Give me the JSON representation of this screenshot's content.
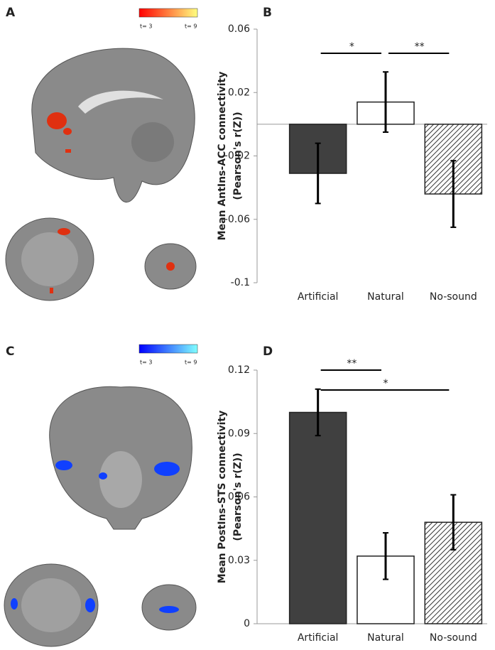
{
  "panel_labels": [
    "A",
    "B",
    "C",
    "D"
  ],
  "colorbars": [
    {
      "min_label": "t= 3",
      "max_label": "t= 9",
      "colors": [
        "#ff0000",
        "#ffff80"
      ]
    },
    {
      "min_label": "t= 3",
      "max_label": "t= 9",
      "colors": [
        "#0000ff",
        "#80ffff"
      ]
    }
  ],
  "chart_data": [
    {
      "type": "bar",
      "ylabel": [
        "Mean AntIns-ACC connectivity",
        "(Pearson's r(Z))"
      ],
      "categories": [
        "Artificial",
        "Natural",
        "No-sound"
      ],
      "values": [
        -0.031,
        0.014,
        -0.044
      ],
      "errors": [
        0.019,
        0.019,
        0.021
      ],
      "colors": [
        "#404040",
        "#ffffff",
        "#ffffff"
      ],
      "hatched": [
        false,
        false,
        true
      ],
      "ylim": [
        -0.1,
        0.06
      ],
      "yticks": [
        0.06,
        0.02,
        -0.02,
        -0.06,
        -0.1
      ],
      "annotations": [
        {
          "text": "*",
          "between": [
            "Artificial",
            "Natural"
          ]
        },
        {
          "text": "**",
          "between": [
            "Natural",
            "No-sound"
          ]
        }
      ]
    },
    {
      "type": "bar",
      "ylabel": [
        "Mean PostIns-STS connectivity",
        "(Pearson's r(Z))"
      ],
      "categories": [
        "Artificial",
        "Natural",
        "No-sound"
      ],
      "values": [
        0.1,
        0.032,
        0.048
      ],
      "errors": [
        0.011,
        0.011,
        0.013
      ],
      "colors": [
        "#404040",
        "#ffffff",
        "#ffffff"
      ],
      "hatched": [
        false,
        false,
        true
      ],
      "ylim": [
        0,
        0.12
      ],
      "yticks": [
        0.12,
        0.09,
        0.06,
        0.03,
        0
      ],
      "annotations": [
        {
          "text": "**",
          "between": [
            "Artificial",
            "Natural"
          ]
        },
        {
          "text": "*",
          "between": [
            "Artificial",
            "No-sound"
          ]
        }
      ]
    }
  ]
}
